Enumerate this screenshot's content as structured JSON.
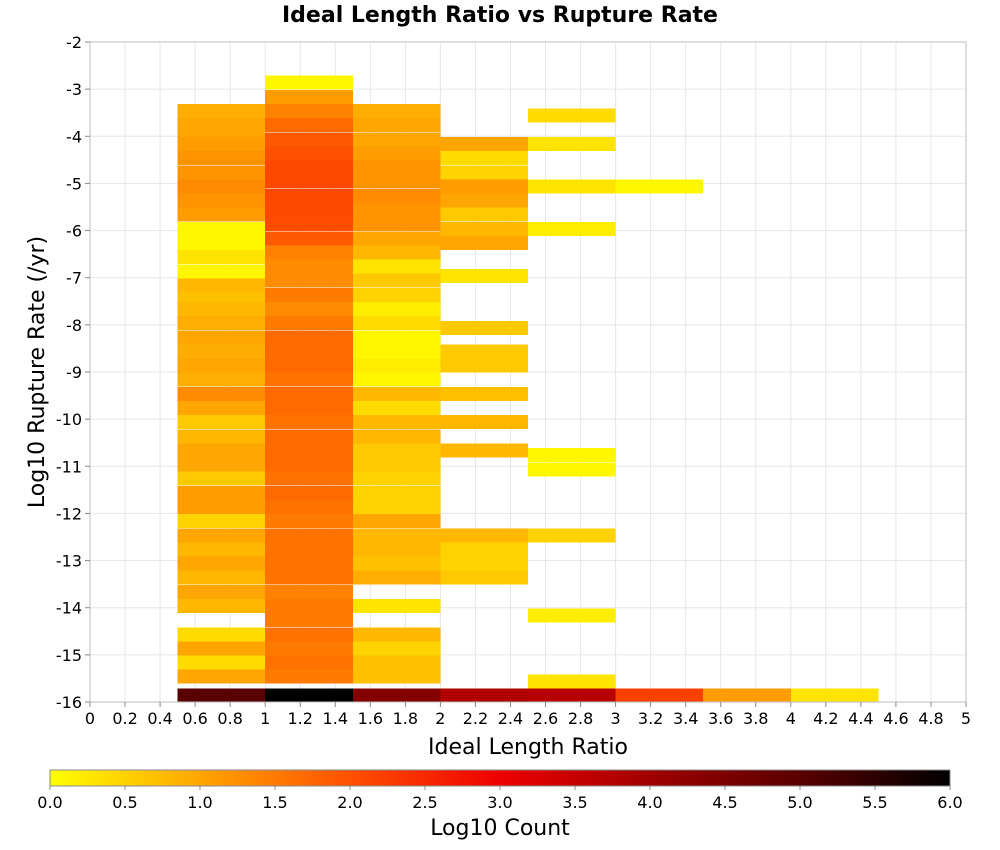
{
  "chart_data": {
    "type": "heatmap",
    "title": "Ideal Length Ratio vs Rupture Rate",
    "xlabel": "Ideal Length Ratio",
    "ylabel": "Log10 Rupture Rate (/yr)",
    "colorbar_label": "Log10 Count",
    "xlim": [
      0,
      5
    ],
    "ylim": [
      -16,
      -2
    ],
    "x_ticks": [
      "0",
      "0.2",
      "0.4",
      "0.6",
      "0.8",
      "1",
      "1.2",
      "1.4",
      "1.6",
      "1.8",
      "2",
      "2.2",
      "2.4",
      "2.6",
      "2.8",
      "3",
      "3.2",
      "3.4",
      "3.6",
      "3.8",
      "4",
      "4.2",
      "4.4",
      "4.6",
      "4.8",
      "5"
    ],
    "y_ticks": [
      "-2",
      "-3",
      "-4",
      "-5",
      "-6",
      "-7",
      "-8",
      "-9",
      "-10",
      "-11",
      "-12",
      "-13",
      "-14",
      "-15",
      "-16"
    ],
    "colorbar_ticks": [
      "0.0",
      "0.5",
      "1.0",
      "1.5",
      "2.0",
      "2.5",
      "3.0",
      "3.5",
      "4.0",
      "4.5",
      "5.0",
      "5.5",
      "6.0"
    ],
    "colorbar_range": [
      0,
      6
    ],
    "x_bin_width": 0.5,
    "y_bin_height": 0.285,
    "grid": true,
    "colormap": [
      "#ffff00",
      "#ffa500",
      "#ff5000",
      "#ee0000",
      "#a00000",
      "#5a0000",
      "#000000"
    ],
    "columns": [
      {
        "x_start": 0.5,
        "cells": [
          [
            -16.0,
            5.0
          ],
          [
            -15.6,
            1.0
          ],
          [
            -15.3,
            0.4
          ],
          [
            -15.0,
            1.0
          ],
          [
            -14.7,
            0.4
          ],
          [
            -14.1,
            0.8
          ],
          [
            -13.8,
            1.0
          ],
          [
            -13.5,
            0.8
          ],
          [
            -13.2,
            1.0
          ],
          [
            -12.9,
            0.8
          ],
          [
            -12.6,
            1.0
          ],
          [
            -12.3,
            0.5
          ],
          [
            -12.0,
            1.1
          ],
          [
            -11.7,
            1.1
          ],
          [
            -11.4,
            0.6
          ],
          [
            -11.1,
            1.0
          ],
          [
            -10.8,
            1.0
          ],
          [
            -10.5,
            0.8
          ],
          [
            -10.2,
            0.6
          ],
          [
            -9.9,
            1.0
          ],
          [
            -9.6,
            1.3
          ],
          [
            -9.3,
            0.9
          ],
          [
            -9.0,
            1.0
          ],
          [
            -8.7,
            0.9
          ],
          [
            -8.4,
            1.0
          ],
          [
            -8.1,
            0.9
          ],
          [
            -7.8,
            0.8
          ],
          [
            -7.5,
            0.7
          ],
          [
            -7.3,
            0.8
          ],
          [
            -7.0,
            0.1
          ],
          [
            -6.7,
            0.3
          ],
          [
            -6.4,
            0.1
          ],
          [
            -6.1,
            0.1
          ],
          [
            -5.8,
            1.1
          ],
          [
            -5.5,
            1.2
          ],
          [
            -5.2,
            1.3
          ],
          [
            -4.9,
            1.2
          ],
          [
            -4.6,
            1.2
          ],
          [
            -4.3,
            1.1
          ],
          [
            -4.0,
            1.0
          ],
          [
            -3.9,
            1.0
          ],
          [
            -3.6,
            0.9
          ]
        ]
      },
      {
        "x_start": 1.0,
        "cells": [
          [
            -16.0,
            6.0
          ],
          [
            -15.6,
            1.5
          ],
          [
            -15.3,
            1.6
          ],
          [
            -15.0,
            1.5
          ],
          [
            -14.7,
            1.6
          ],
          [
            -14.4,
            1.5
          ],
          [
            -14.1,
            1.5
          ],
          [
            -13.8,
            1.4
          ],
          [
            -13.5,
            1.6
          ],
          [
            -13.2,
            1.6
          ],
          [
            -12.9,
            1.6
          ],
          [
            -12.6,
            1.6
          ],
          [
            -12.3,
            1.5
          ],
          [
            -12.0,
            1.6
          ],
          [
            -11.7,
            1.7
          ],
          [
            -11.4,
            1.6
          ],
          [
            -11.1,
            1.7
          ],
          [
            -10.8,
            1.7
          ],
          [
            -10.5,
            1.7
          ],
          [
            -10.2,
            1.6
          ],
          [
            -9.9,
            1.7
          ],
          [
            -9.6,
            1.7
          ],
          [
            -9.3,
            1.6
          ],
          [
            -9.0,
            1.7
          ],
          [
            -8.7,
            1.7
          ],
          [
            -8.4,
            1.7
          ],
          [
            -8.1,
            1.5
          ],
          [
            -7.8,
            1.3
          ],
          [
            -7.5,
            1.5
          ],
          [
            -7.2,
            1.3
          ],
          [
            -6.9,
            1.3
          ],
          [
            -6.6,
            1.4
          ],
          [
            -6.3,
            1.9
          ],
          [
            -6.0,
            2.05
          ],
          [
            -5.7,
            2.1
          ],
          [
            -5.4,
            2.1
          ],
          [
            -5.1,
            2.1
          ],
          [
            -4.8,
            2.1
          ],
          [
            -4.5,
            2.0
          ],
          [
            -4.2,
            1.9
          ],
          [
            -3.9,
            1.7
          ],
          [
            -3.6,
            1.4
          ],
          [
            -3.3,
            1.1
          ],
          [
            -3.0,
            0.1
          ]
        ]
      },
      {
        "x_start": 1.5,
        "cells": [
          [
            -16.0,
            4.4
          ],
          [
            -15.6,
            0.7
          ],
          [
            -15.3,
            0.7
          ],
          [
            -15.0,
            0.5
          ],
          [
            -14.7,
            0.8
          ],
          [
            -14.1,
            0.3
          ],
          [
            -13.5,
            0.9
          ],
          [
            -13.2,
            0.7
          ],
          [
            -12.9,
            0.8
          ],
          [
            -12.6,
            0.8
          ],
          [
            -12.3,
            1.0
          ],
          [
            -12.0,
            0.5
          ],
          [
            -11.7,
            0.5
          ],
          [
            -11.4,
            0.5
          ],
          [
            -11.1,
            0.6
          ],
          [
            -10.8,
            0.6
          ],
          [
            -10.5,
            0.8
          ],
          [
            -10.2,
            0.8
          ],
          [
            -9.9,
            0.4
          ],
          [
            -9.6,
            0.8
          ],
          [
            -9.3,
            0.1
          ],
          [
            -9.0,
            0.2
          ],
          [
            -8.7,
            0.1
          ],
          [
            -8.4,
            0.1
          ],
          [
            -8.1,
            0.4
          ],
          [
            -7.8,
            0.2
          ],
          [
            -7.5,
            0.5
          ],
          [
            -7.2,
            0.6
          ],
          [
            -6.9,
            0.3
          ],
          [
            -6.6,
            0.8
          ],
          [
            -6.3,
            1.0
          ],
          [
            -6.0,
            1.2
          ],
          [
            -5.7,
            1.2
          ],
          [
            -5.4,
            1.3
          ],
          [
            -5.1,
            1.2
          ],
          [
            -4.8,
            1.2
          ],
          [
            -4.5,
            1.1
          ],
          [
            -4.2,
            1.0
          ],
          [
            -3.9,
            1.0
          ],
          [
            -3.6,
            0.9
          ]
        ]
      },
      {
        "x_start": 2.0,
        "cells": [
          [
            -16.0,
            3.8
          ],
          [
            -13.5,
            0.6
          ],
          [
            -13.2,
            0.5
          ],
          [
            -12.9,
            0.5
          ],
          [
            -12.6,
            0.8
          ],
          [
            -10.8,
            0.8
          ],
          [
            -10.2,
            0.8
          ],
          [
            -9.6,
            0.7
          ],
          [
            -9.0,
            0.6
          ],
          [
            -8.7,
            0.6
          ],
          [
            -8.2,
            0.6
          ],
          [
            -7.1,
            0.3
          ],
          [
            -6.4,
            1.0
          ],
          [
            -6.1,
            0.8
          ],
          [
            -5.8,
            0.6
          ],
          [
            -5.5,
            1.0
          ],
          [
            -5.2,
            1.1
          ],
          [
            -4.9,
            0.5
          ],
          [
            -4.6,
            0.4
          ],
          [
            -4.3,
            1.0
          ]
        ]
      },
      {
        "x_start": 2.5,
        "cells": [
          [
            -16.0,
            3.7
          ],
          [
            -15.7,
            0.3
          ],
          [
            -14.3,
            0.2
          ],
          [
            -12.6,
            0.5
          ],
          [
            -11.2,
            0.1
          ],
          [
            -10.9,
            0.1
          ],
          [
            -6.1,
            0.2
          ],
          [
            -5.2,
            0.3
          ],
          [
            -4.3,
            0.3
          ],
          [
            -3.7,
            0.4
          ]
        ]
      },
      {
        "x_start": 3.0,
        "cells": [
          [
            -16.0,
            2.2
          ],
          [
            -5.2,
            0.1
          ]
        ]
      },
      {
        "x_start": 3.5,
        "cells": [
          [
            -16.0,
            1.1
          ]
        ]
      },
      {
        "x_start": 4.0,
        "cells": [
          [
            -16.0,
            0.3
          ]
        ]
      }
    ]
  }
}
